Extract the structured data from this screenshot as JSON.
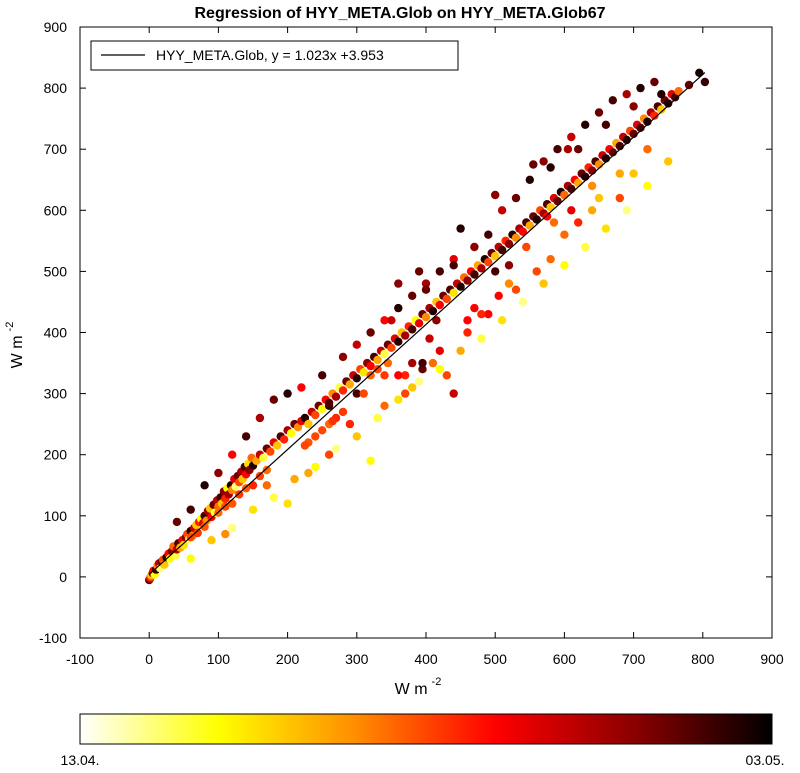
{
  "chart_data": {
    "type": "scatter",
    "title": "Regression of HYY_META.Glob on HYY_META.Glob67",
    "xlabel": {
      "base": "W m",
      "exponent": "-2"
    },
    "ylabel": {
      "base": "W m",
      "exponent": "-2"
    },
    "xlim": [
      -100,
      900
    ],
    "ylim": [
      -100,
      900
    ],
    "xticks": [
      -100,
      0,
      100,
      200,
      300,
      400,
      500,
      600,
      700,
      800,
      900
    ],
    "yticks": [
      -100,
      0,
      100,
      200,
      300,
      400,
      500,
      600,
      700,
      800,
      900
    ],
    "grid": false,
    "legend": {
      "placement": "top-left",
      "entry": "HYY_META.Glob, y = 1.023x +3.953"
    },
    "regression": {
      "slope": 1.023,
      "intercept": 3.953,
      "x_range": [
        0,
        803
      ]
    },
    "colorbar": {
      "start_label": "13.04.",
      "end_label": "03.05.",
      "colors": [
        "#ffffff",
        "#ffff00",
        "#ff8c00",
        "#ff0000",
        "#8b0000",
        "#000000"
      ]
    },
    "points": [
      [
        0,
        -5,
        0.9
      ],
      [
        1,
        -3,
        0.7
      ],
      [
        2,
        0,
        0.5
      ],
      [
        3,
        3,
        0.3
      ],
      [
        5,
        6,
        0.8
      ],
      [
        6,
        10,
        0.6
      ],
      [
        8,
        4,
        0.2
      ],
      [
        10,
        12,
        0.9
      ],
      [
        12,
        18,
        0.4
      ],
      [
        14,
        22,
        0.7
      ],
      [
        16,
        14,
        0.1
      ],
      [
        18,
        25,
        0.85
      ],
      [
        20,
        28,
        0.5
      ],
      [
        22,
        20,
        0.3
      ],
      [
        25,
        32,
        0.95
      ],
      [
        28,
        38,
        0.6
      ],
      [
        30,
        30,
        0.2
      ],
      [
        33,
        42,
        0.8
      ],
      [
        35,
        50,
        0.45
      ],
      [
        38,
        35,
        0.15
      ],
      [
        40,
        45,
        0.7
      ],
      [
        42,
        55,
        0.9
      ],
      [
        45,
        48,
        0.35
      ],
      [
        48,
        60,
        0.6
      ],
      [
        50,
        52,
        0.25
      ],
      [
        53,
        65,
        0.8
      ],
      [
        55,
        70,
        0.5
      ],
      [
        58,
        62,
        0.1
      ],
      [
        60,
        75,
        0.95
      ],
      [
        63,
        68,
        0.4
      ],
      [
        65,
        80,
        0.7
      ],
      [
        68,
        85,
        0.3
      ],
      [
        70,
        72,
        0.85
      ],
      [
        72,
        90,
        0.55
      ],
      [
        75,
        95,
        0.2
      ],
      [
        78,
        88,
        0.65
      ],
      [
        80,
        100,
        0.9
      ],
      [
        83,
        92,
        0.4
      ],
      [
        85,
        108,
        0.75
      ],
      [
        88,
        112,
        0.3
      ],
      [
        90,
        98,
        0.6
      ],
      [
        93,
        118,
        0.85
      ],
      [
        95,
        105,
        0.15
      ],
      [
        98,
        125,
        0.7
      ],
      [
        100,
        115,
        0.45
      ],
      [
        103,
        130,
        0.9
      ],
      [
        105,
        120,
        0.3
      ],
      [
        108,
        140,
        0.8
      ],
      [
        110,
        128,
        0.55
      ],
      [
        113,
        145,
        0.2
      ],
      [
        115,
        135,
        0.75
      ],
      [
        118,
        150,
        0.95
      ],
      [
        120,
        142,
        0.4
      ],
      [
        123,
        160,
        0.65
      ],
      [
        125,
        148,
        0.1
      ],
      [
        128,
        165,
        0.85
      ],
      [
        130,
        155,
        0.5
      ],
      [
        133,
        172,
        0.75
      ],
      [
        135,
        160,
        0.3
      ],
      [
        138,
        180,
        0.9
      ],
      [
        140,
        168,
        0.6
      ],
      [
        143,
        185,
        0.25
      ],
      [
        145,
        175,
        0.8
      ],
      [
        148,
        195,
        0.45
      ],
      [
        150,
        182,
        0.95
      ],
      [
        155,
        190,
        0.35
      ],
      [
        160,
        200,
        0.7
      ],
      [
        165,
        195,
        0.15
      ],
      [
        170,
        210,
        0.85
      ],
      [
        175,
        205,
        0.5
      ],
      [
        180,
        220,
        0.65
      ],
      [
        185,
        215,
        0.3
      ],
      [
        190,
        230,
        0.9
      ],
      [
        195,
        225,
        0.55
      ],
      [
        200,
        240,
        0.75
      ],
      [
        205,
        235,
        0.2
      ],
      [
        210,
        250,
        0.85
      ],
      [
        215,
        245,
        0.4
      ],
      [
        220,
        255,
        0.65
      ],
      [
        225,
        260,
        0.95
      ],
      [
        230,
        250,
        0.3
      ],
      [
        235,
        270,
        0.7
      ],
      [
        240,
        265,
        0.5
      ],
      [
        245,
        280,
        0.85
      ],
      [
        250,
        275,
        0.2
      ],
      [
        255,
        290,
        0.6
      ],
      [
        260,
        285,
        0.9
      ],
      [
        265,
        300,
        0.4
      ],
      [
        270,
        295,
        0.75
      ],
      [
        275,
        310,
        0.15
      ],
      [
        280,
        305,
        0.55
      ],
      [
        285,
        320,
        0.85
      ],
      [
        290,
        315,
        0.35
      ],
      [
        295,
        330,
        0.7
      ],
      [
        300,
        325,
        0.95
      ],
      [
        305,
        340,
        0.5
      ],
      [
        310,
        335,
        0.25
      ],
      [
        315,
        350,
        0.8
      ],
      [
        320,
        345,
        0.6
      ],
      [
        325,
        360,
        0.9
      ],
      [
        330,
        355,
        0.35
      ],
      [
        335,
        370,
        0.7
      ],
      [
        340,
        365,
        0.15
      ],
      [
        345,
        380,
        0.85
      ],
      [
        350,
        375,
        0.5
      ],
      [
        355,
        390,
        0.65
      ],
      [
        360,
        385,
        0.95
      ],
      [
        365,
        400,
        0.3
      ],
      [
        370,
        395,
        0.75
      ],
      [
        375,
        410,
        0.55
      ],
      [
        380,
        405,
        0.9
      ],
      [
        385,
        420,
        0.2
      ],
      [
        390,
        415,
        0.65
      ],
      [
        395,
        430,
        0.85
      ],
      [
        400,
        425,
        0.4
      ],
      [
        405,
        440,
        0.75
      ],
      [
        410,
        435,
        0.95
      ],
      [
        415,
        450,
        0.3
      ],
      [
        420,
        445,
        0.6
      ],
      [
        425,
        460,
        0.85
      ],
      [
        430,
        455,
        0.5
      ],
      [
        435,
        470,
        0.9
      ],
      [
        440,
        465,
        0.25
      ],
      [
        445,
        480,
        0.7
      ],
      [
        450,
        475,
        0.95
      ],
      [
        455,
        490,
        0.45
      ],
      [
        460,
        485,
        0.8
      ],
      [
        465,
        500,
        0.6
      ],
      [
        470,
        495,
        0.9
      ],
      [
        475,
        510,
        0.35
      ],
      [
        480,
        505,
        0.75
      ],
      [
        485,
        520,
        0.95
      ],
      [
        490,
        515,
        0.5
      ],
      [
        495,
        530,
        0.85
      ],
      [
        500,
        525,
        0.3
      ],
      [
        505,
        540,
        0.7
      ],
      [
        510,
        535,
        0.9
      ],
      [
        515,
        550,
        0.55
      ],
      [
        520,
        545,
        0.8
      ],
      [
        525,
        560,
        0.95
      ],
      [
        530,
        555,
        0.4
      ],
      [
        535,
        570,
        0.75
      ],
      [
        540,
        565,
        0.6
      ],
      [
        545,
        580,
        0.9
      ],
      [
        550,
        575,
        0.35
      ],
      [
        555,
        590,
        0.85
      ],
      [
        560,
        585,
        0.95
      ],
      [
        565,
        600,
        0.5
      ],
      [
        570,
        595,
        0.75
      ],
      [
        575,
        610,
        0.9
      ],
      [
        580,
        605,
        0.3
      ],
      [
        585,
        620,
        0.65
      ],
      [
        590,
        615,
        0.85
      ],
      [
        595,
        630,
        0.95
      ],
      [
        600,
        625,
        0.45
      ],
      [
        605,
        640,
        0.75
      ],
      [
        610,
        635,
        0.9
      ],
      [
        615,
        650,
        0.6
      ],
      [
        620,
        645,
        0.35
      ],
      [
        625,
        660,
        0.85
      ],
      [
        630,
        655,
        0.95
      ],
      [
        635,
        670,
        0.55
      ],
      [
        640,
        665,
        0.8
      ],
      [
        645,
        680,
        0.9
      ],
      [
        650,
        675,
        0.4
      ],
      [
        655,
        690,
        0.7
      ],
      [
        660,
        685,
        0.95
      ],
      [
        665,
        700,
        0.6
      ],
      [
        670,
        695,
        0.85
      ],
      [
        675,
        710,
        0.35
      ],
      [
        680,
        705,
        0.9
      ],
      [
        685,
        720,
        0.7
      ],
      [
        690,
        715,
        0.95
      ],
      [
        695,
        730,
        0.5
      ],
      [
        700,
        725,
        0.85
      ],
      [
        705,
        740,
        0.65
      ],
      [
        710,
        735,
        0.9
      ],
      [
        715,
        750,
        0.4
      ],
      [
        720,
        745,
        0.95
      ],
      [
        725,
        760,
        0.75
      ],
      [
        730,
        755,
        0.55
      ],
      [
        735,
        770,
        0.9
      ],
      [
        740,
        765,
        0.3
      ],
      [
        745,
        780,
        0.85
      ],
      [
        750,
        775,
        0.95
      ],
      [
        755,
        790,
        0.65
      ],
      [
        760,
        785,
        0.9
      ],
      [
        765,
        795,
        0.45
      ],
      [
        780,
        805,
        0.85
      ],
      [
        795,
        825,
        0.97
      ],
      [
        803,
        810,
        0.92
      ],
      [
        40,
        90,
        0.85
      ],
      [
        60,
        110,
        0.9
      ],
      [
        80,
        150,
        0.95
      ],
      [
        100,
        170,
        0.8
      ],
      [
        120,
        200,
        0.6
      ],
      [
        140,
        230,
        0.9
      ],
      [
        160,
        260,
        0.75
      ],
      [
        180,
        290,
        0.85
      ],
      [
        200,
        300,
        0.95
      ],
      [
        220,
        310,
        0.6
      ],
      [
        250,
        330,
        0.9
      ],
      [
        280,
        360,
        0.8
      ],
      [
        300,
        380,
        0.7
      ],
      [
        320,
        400,
        0.85
      ],
      [
        340,
        420,
        0.6
      ],
      [
        360,
        440,
        0.95
      ],
      [
        380,
        460,
        0.85
      ],
      [
        400,
        480,
        0.75
      ],
      [
        420,
        500,
        0.9
      ],
      [
        440,
        520,
        0.65
      ],
      [
        450,
        570,
        0.95
      ],
      [
        470,
        540,
        0.8
      ],
      [
        490,
        560,
        0.9
      ],
      [
        510,
        600,
        0.7
      ],
      [
        530,
        620,
        0.85
      ],
      [
        550,
        650,
        0.95
      ],
      [
        570,
        680,
        0.8
      ],
      [
        590,
        700,
        0.9
      ],
      [
        610,
        720,
        0.7
      ],
      [
        630,
        740,
        0.95
      ],
      [
        650,
        760,
        0.85
      ],
      [
        670,
        780,
        0.9
      ],
      [
        690,
        790,
        0.75
      ],
      [
        710,
        800,
        0.95
      ],
      [
        730,
        810,
        0.85
      ],
      [
        360,
        480,
        0.8
      ],
      [
        390,
        500,
        0.85
      ],
      [
        300,
        300,
        0.9
      ],
      [
        350,
        420,
        0.7
      ],
      [
        260,
        280,
        0.9
      ],
      [
        500,
        625,
        0.8
      ],
      [
        440,
        510,
        0.9
      ],
      [
        580,
        670,
        0.95
      ],
      [
        620,
        700,
        0.85
      ],
      [
        660,
        740,
        0.9
      ],
      [
        700,
        770,
        0.8
      ],
      [
        740,
        790,
        0.95
      ],
      [
        400,
        470,
        0.85
      ],
      [
        60,
        30,
        0.2
      ],
      [
        90,
        60,
        0.3
      ],
      [
        120,
        80,
        0.1
      ],
      [
        150,
        110,
        0.25
      ],
      [
        180,
        130,
        0.15
      ],
      [
        210,
        160,
        0.35
      ],
      [
        240,
        180,
        0.2
      ],
      [
        270,
        210,
        0.1
      ],
      [
        300,
        230,
        0.3
      ],
      [
        330,
        260,
        0.15
      ],
      [
        360,
        290,
        0.25
      ],
      [
        390,
        320,
        0.1
      ],
      [
        420,
        340,
        0.2
      ],
      [
        450,
        370,
        0.35
      ],
      [
        480,
        390,
        0.15
      ],
      [
        510,
        420,
        0.25
      ],
      [
        540,
        450,
        0.1
      ],
      [
        570,
        480,
        0.3
      ],
      [
        600,
        510,
        0.2
      ],
      [
        630,
        540,
        0.15
      ],
      [
        660,
        570,
        0.25
      ],
      [
        690,
        600,
        0.1
      ],
      [
        720,
        640,
        0.2
      ],
      [
        750,
        680,
        0.3
      ],
      [
        320,
        190,
        0.2
      ],
      [
        380,
        310,
        0.3
      ],
      [
        430,
        330,
        0.5
      ],
      [
        470,
        440,
        0.6
      ],
      [
        520,
        480,
        0.4
      ],
      [
        560,
        500,
        0.5
      ],
      [
        600,
        560,
        0.45
      ],
      [
        640,
        600,
        0.35
      ],
      [
        200,
        120,
        0.25
      ],
      [
        230,
        170,
        0.35
      ],
      [
        110,
        70,
        0.4
      ],
      [
        170,
        150,
        0.45
      ],
      [
        260,
        200,
        0.5
      ],
      [
        290,
        250,
        0.55
      ],
      [
        340,
        280,
        0.45
      ],
      [
        370,
        300,
        0.5
      ],
      [
        410,
        350,
        0.45
      ],
      [
        460,
        400,
        0.55
      ],
      [
        490,
        430,
        0.6
      ],
      [
        530,
        470,
        0.5
      ],
      [
        580,
        520,
        0.45
      ],
      [
        620,
        580,
        0.55
      ],
      [
        680,
        620,
        0.5
      ],
      [
        720,
        700,
        0.45
      ],
      [
        250,
        240,
        0.5
      ],
      [
        260,
        250,
        0.45
      ],
      [
        270,
        260,
        0.55
      ],
      [
        240,
        230,
        0.5
      ],
      [
        230,
        220,
        0.48
      ],
      [
        280,
        270,
        0.52
      ],
      [
        225,
        215,
        0.5
      ],
      [
        265,
        255,
        0.53
      ],
      [
        320,
        330,
        0.47
      ],
      [
        330,
        340,
        0.5
      ],
      [
        340,
        330,
        0.52
      ],
      [
        345,
        350,
        0.45
      ],
      [
        310,
        300,
        0.5
      ],
      [
        100,
        105,
        0.45
      ],
      [
        110,
        115,
        0.5
      ],
      [
        120,
        120,
        0.48
      ],
      [
        130,
        135,
        0.52
      ],
      [
        140,
        145,
        0.47
      ],
      [
        150,
        150,
        0.55
      ],
      [
        160,
        165,
        0.5
      ],
      [
        170,
        175,
        0.45
      ],
      [
        60,
        65,
        0.5
      ],
      [
        70,
        72,
        0.52
      ],
      [
        80,
        82,
        0.48
      ],
      [
        440,
        300,
        0.7
      ],
      [
        460,
        420,
        0.6
      ],
      [
        555,
        675,
        0.85
      ],
      [
        605,
        700,
        0.75
      ],
      [
        640,
        640,
        0.4
      ],
      [
        700,
        660,
        0.3
      ],
      [
        680,
        660,
        0.35
      ],
      [
        650,
        620,
        0.3
      ],
      [
        575,
        590,
        0.6
      ],
      [
        585,
        580,
        0.45
      ],
      [
        610,
        600,
        0.65
      ],
      [
        545,
        540,
        0.5
      ],
      [
        520,
        510,
        0.8
      ],
      [
        500,
        500,
        0.9
      ],
      [
        505,
        460,
        0.6
      ],
      [
        480,
        430,
        0.55
      ],
      [
        395,
        340,
        0.85
      ],
      [
        395,
        350,
        0.9
      ],
      [
        405,
        390,
        0.7
      ],
      [
        420,
        370,
        0.65
      ],
      [
        370,
        330,
        0.55
      ],
      [
        360,
        330,
        0.6
      ],
      [
        380,
        350,
        0.75
      ],
      [
        415,
        420,
        0.8
      ]
    ]
  }
}
